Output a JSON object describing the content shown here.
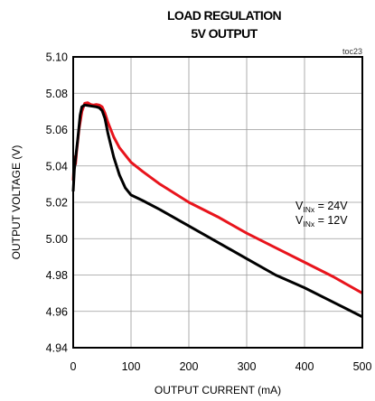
{
  "chart_data": {
    "type": "line",
    "title_line1": "LOAD REGULATION",
    "title_line2": "5V OUTPUT",
    "figure_id": "toc23",
    "xlabel": "OUTPUT CURRENT (mA)",
    "ylabel": "OUTPUT VOLTAGE (V)",
    "xlim": [
      0,
      500
    ],
    "ylim": [
      4.94,
      5.1
    ],
    "x_ticks": [
      "0",
      "100",
      "200",
      "300",
      "400",
      "500"
    ],
    "y_ticks": [
      "4.94",
      "4.96",
      "4.98",
      "5.00",
      "5.02",
      "5.04",
      "5.06",
      "5.08",
      "5.10"
    ],
    "grid": true,
    "legend": [
      {
        "prefix": "V",
        "sub": "INx",
        "suffix": " = 24V"
      },
      {
        "prefix": "V",
        "sub": "INx",
        "suffix": " = 12V"
      }
    ],
    "series": [
      {
        "color": "#e8141c",
        "points": [
          [
            0,
            5.032
          ],
          [
            2,
            5.045
          ],
          [
            4,
            5.041
          ],
          [
            6,
            5.048
          ],
          [
            10,
            5.06
          ],
          [
            15,
            5.07
          ],
          [
            20,
            5.0745
          ],
          [
            25,
            5.0748
          ],
          [
            30,
            5.0738
          ],
          [
            35,
            5.0735
          ],
          [
            40,
            5.0738
          ],
          [
            45,
            5.0735
          ],
          [
            50,
            5.0725
          ],
          [
            55,
            5.069
          ],
          [
            60,
            5.064
          ],
          [
            70,
            5.056
          ],
          [
            80,
            5.05
          ],
          [
            100,
            5.042
          ],
          [
            120,
            5.037
          ],
          [
            150,
            5.03
          ],
          [
            200,
            5.02
          ],
          [
            250,
            5.012
          ],
          [
            300,
            5.003
          ],
          [
            350,
            4.995
          ],
          [
            400,
            4.987
          ],
          [
            450,
            4.979
          ],
          [
            500,
            4.97
          ]
        ]
      },
      {
        "color": "#000000",
        "points": [
          [
            0,
            5.026
          ],
          [
            2,
            5.038
          ],
          [
            4,
            5.044
          ],
          [
            8,
            5.055
          ],
          [
            12,
            5.068
          ],
          [
            15,
            5.0725
          ],
          [
            20,
            5.0735
          ],
          [
            30,
            5.073
          ],
          [
            40,
            5.0725
          ],
          [
            45,
            5.072
          ],
          [
            50,
            5.0705
          ],
          [
            55,
            5.066
          ],
          [
            60,
            5.058
          ],
          [
            70,
            5.045
          ],
          [
            80,
            5.035
          ],
          [
            90,
            5.028
          ],
          [
            100,
            5.024
          ],
          [
            120,
            5.021
          ],
          [
            150,
            5.016
          ],
          [
            200,
            5.007
          ],
          [
            250,
            4.998
          ],
          [
            300,
            4.989
          ],
          [
            350,
            4.98
          ],
          [
            400,
            4.973
          ],
          [
            450,
            4.965
          ],
          [
            500,
            4.957
          ]
        ]
      }
    ]
  }
}
